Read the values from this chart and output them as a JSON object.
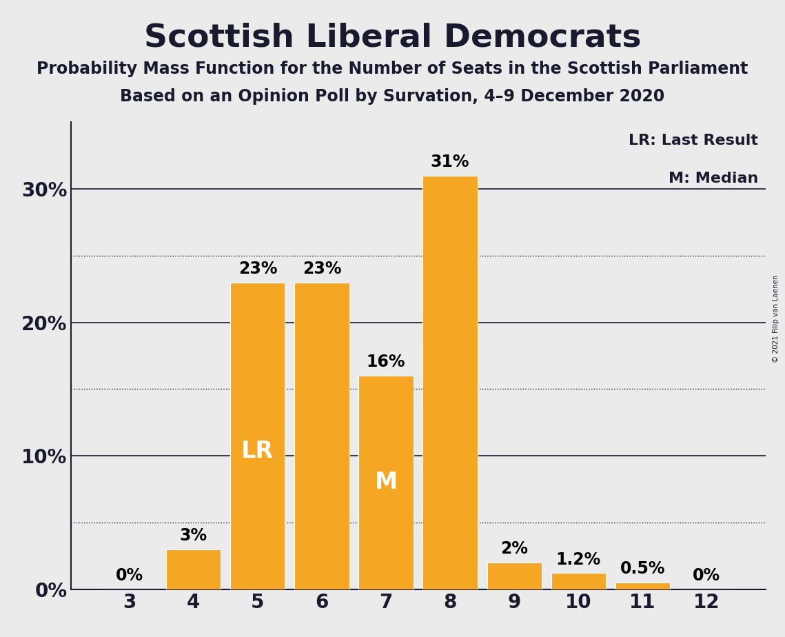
{
  "title": "Scottish Liberal Democrats",
  "subtitle1": "Probability Mass Function for the Number of Seats in the Scottish Parliament",
  "subtitle2": "Based on an Opinion Poll by Survation, 4–9 December 2020",
  "categories": [
    3,
    4,
    5,
    6,
    7,
    8,
    9,
    10,
    11,
    12
  ],
  "values": [
    0.0,
    3.0,
    23.0,
    23.0,
    16.0,
    31.0,
    2.0,
    1.2,
    0.5,
    0.0
  ],
  "bar_color": "#F5A623",
  "label_texts": [
    "0%",
    "3%",
    "23%",
    "23%",
    "16%",
    "31%",
    "2%",
    "1.2%",
    "0.5%",
    "0%"
  ],
  "lr_bar": 5,
  "median_bar": 7,
  "lr_label": "LR",
  "median_label": "M",
  "legend_text1": "LR: Last Result",
  "legend_text2": "M: Median",
  "solid_lines": [
    10,
    20,
    30
  ],
  "dotted_lines": [
    5,
    15,
    25
  ],
  "ytick_vals": [
    0,
    10,
    20,
    30
  ],
  "ytick_labels": [
    "0%",
    "10%",
    "20%",
    "30%"
  ],
  "ylim": [
    0,
    35
  ],
  "background_color": "#EBEBEB",
  "copyright_text": "© 2021 Filip van Laenen",
  "title_fontsize": 34,
  "subtitle_fontsize": 17,
  "bar_label_fontsize": 17,
  "axis_tick_fontsize": 20,
  "bar_inner_fontsize": 24
}
